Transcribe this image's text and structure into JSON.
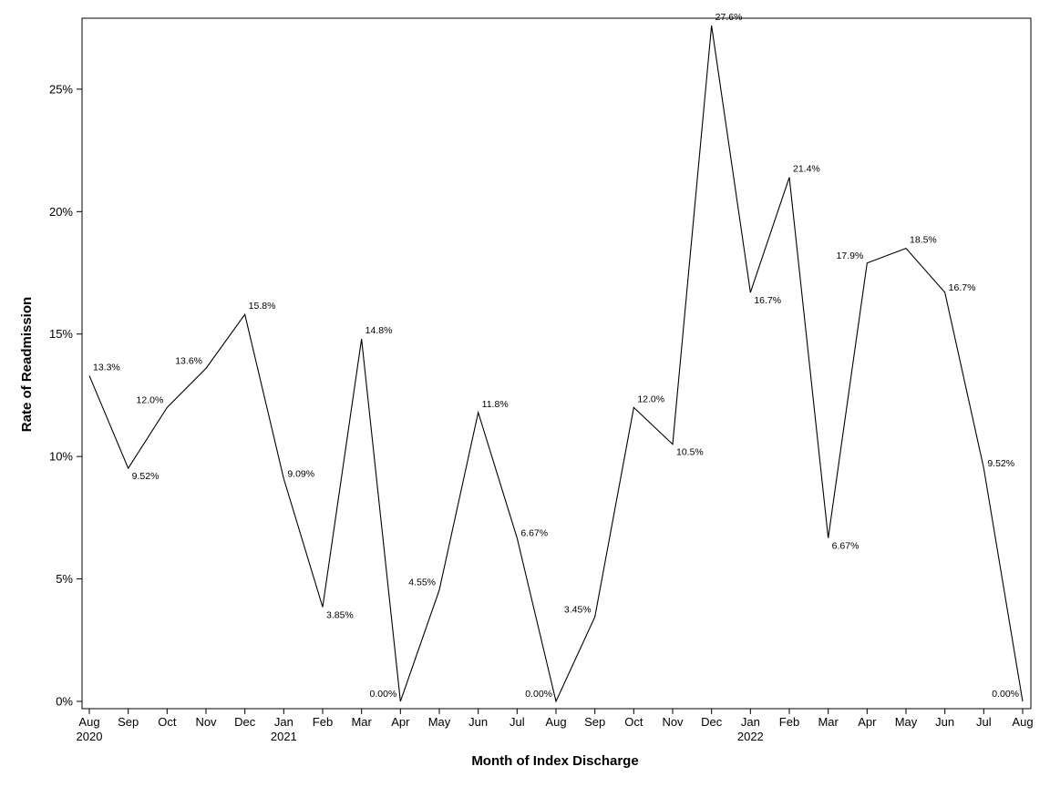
{
  "chart_data": {
    "type": "line",
    "xlabel": "Month of Index Discharge",
    "ylabel": "Rate of Readmission",
    "ylim": [
      0,
      27.6
    ],
    "y_ticks": [
      0,
      5,
      10,
      15,
      20,
      25
    ],
    "y_tick_labels": [
      "0%",
      "5%",
      "10%",
      "15%",
      "20%",
      "25%"
    ],
    "grid": false,
    "x": [
      "Aug 2020",
      "Sep 2020",
      "Oct 2020",
      "Nov 2020",
      "Dec 2020",
      "Jan 2021",
      "Feb 2021",
      "Mar 2021",
      "Apr 2021",
      "May 2021",
      "Jun 2021",
      "Jul 2021",
      "Aug 2021",
      "Sep 2021",
      "Oct 2021",
      "Nov 2021",
      "Dec 2021",
      "Jan 2022",
      "Feb 2022",
      "Mar 2022",
      "Apr 2022",
      "May 2022",
      "Jun 2022",
      "Jul 2022",
      "Aug 2022"
    ],
    "x_tick_labels": [
      "Aug",
      "Sep",
      "Oct",
      "Nov",
      "Dec",
      "Jan",
      "Feb",
      "Mar",
      "Apr",
      "May",
      "Jun",
      "Jul",
      "Aug",
      "Sep",
      "Oct",
      "Nov",
      "Dec",
      "Jan",
      "Feb",
      "Mar",
      "Apr",
      "May",
      "Jun",
      "Jul",
      "Aug"
    ],
    "year_labels": [
      {
        "index": 0,
        "label": "2020"
      },
      {
        "index": 5,
        "label": "2021"
      },
      {
        "index": 17,
        "label": "2022"
      }
    ],
    "values": [
      13.3,
      9.52,
      12.0,
      13.6,
      15.8,
      9.09,
      3.85,
      14.8,
      0.0,
      4.55,
      11.8,
      6.67,
      0.0,
      3.45,
      12.0,
      10.5,
      27.6,
      16.7,
      21.4,
      6.67,
      17.9,
      18.5,
      16.7,
      9.52,
      0.0
    ],
    "data_labels": [
      "13.3%",
      "9.52%",
      "12.0%",
      "13.6%",
      "15.8%",
      "9.09%",
      "3.85%",
      "14.8%",
      "0.00%",
      "4.55%",
      "11.8%",
      "6.67%",
      "0.00%",
      "3.45%",
      "12.0%",
      "10.5%",
      "27.6%",
      "16.7%",
      "21.4%",
      "6.67%",
      "17.9%",
      "18.5%",
      "16.7%",
      "9.52%",
      "0.00%"
    ],
    "line_color": "#000000"
  }
}
